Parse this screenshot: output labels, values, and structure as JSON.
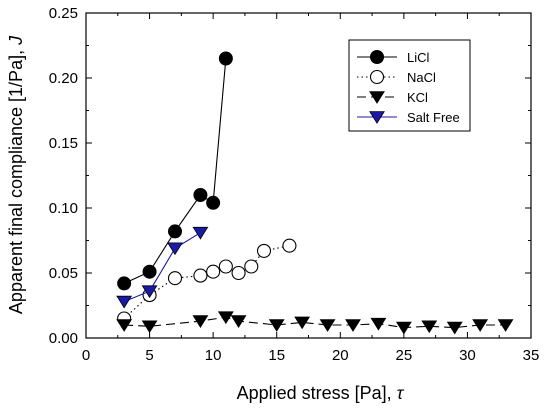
{
  "chart_data": {
    "type": "scatter",
    "xlabel": "Applied stress [Pa],",
    "xlabel_symbol": "τ",
    "ylabel": "Apparent final compliance [1/Pa],",
    "ylabel_symbol": "J",
    "xlim": [
      0,
      35
    ],
    "ylim": [
      0,
      0.25
    ],
    "xticks": [
      "0",
      "5",
      "10",
      "15",
      "20",
      "25",
      "30",
      "35"
    ],
    "yticks": [
      "0.00",
      "0.05",
      "0.10",
      "0.15",
      "0.20",
      "0.25"
    ],
    "legend_position": "top-right",
    "series": [
      {
        "name": "LiCl",
        "marker": "circle-filled",
        "line": "solid",
        "color": "#000000",
        "x": [
          3,
          5,
          7,
          9,
          10,
          11
        ],
        "y": [
          0.042,
          0.051,
          0.082,
          0.11,
          0.104,
          0.215
        ]
      },
      {
        "name": "NaCl",
        "marker": "circle-open",
        "line": "dotted",
        "color": "#000000",
        "x": [
          3,
          5,
          7,
          9,
          10,
          11,
          12,
          13,
          14,
          16
        ],
        "y": [
          0.015,
          0.033,
          0.046,
          0.048,
          0.051,
          0.055,
          0.05,
          0.055,
          0.067,
          0.071
        ]
      },
      {
        "name": "KCl",
        "marker": "triangle-down-filled",
        "line": "dashed",
        "color": "#000000",
        "x": [
          3,
          5,
          9,
          11,
          12,
          15,
          17,
          19,
          21,
          23,
          25,
          27,
          29,
          31,
          33
        ],
        "y": [
          0.01,
          0.009,
          0.013,
          0.016,
          0.013,
          0.01,
          0.012,
          0.01,
          0.01,
          0.011,
          0.008,
          0.009,
          0.008,
          0.01,
          0.01
        ]
      },
      {
        "name": "Salt Free",
        "marker": "triangle-down-filled",
        "line": "solid",
        "color": "#1a1aa6",
        "x": [
          3,
          5,
          7,
          9
        ],
        "y": [
          0.028,
          0.036,
          0.069,
          0.081
        ]
      }
    ]
  }
}
